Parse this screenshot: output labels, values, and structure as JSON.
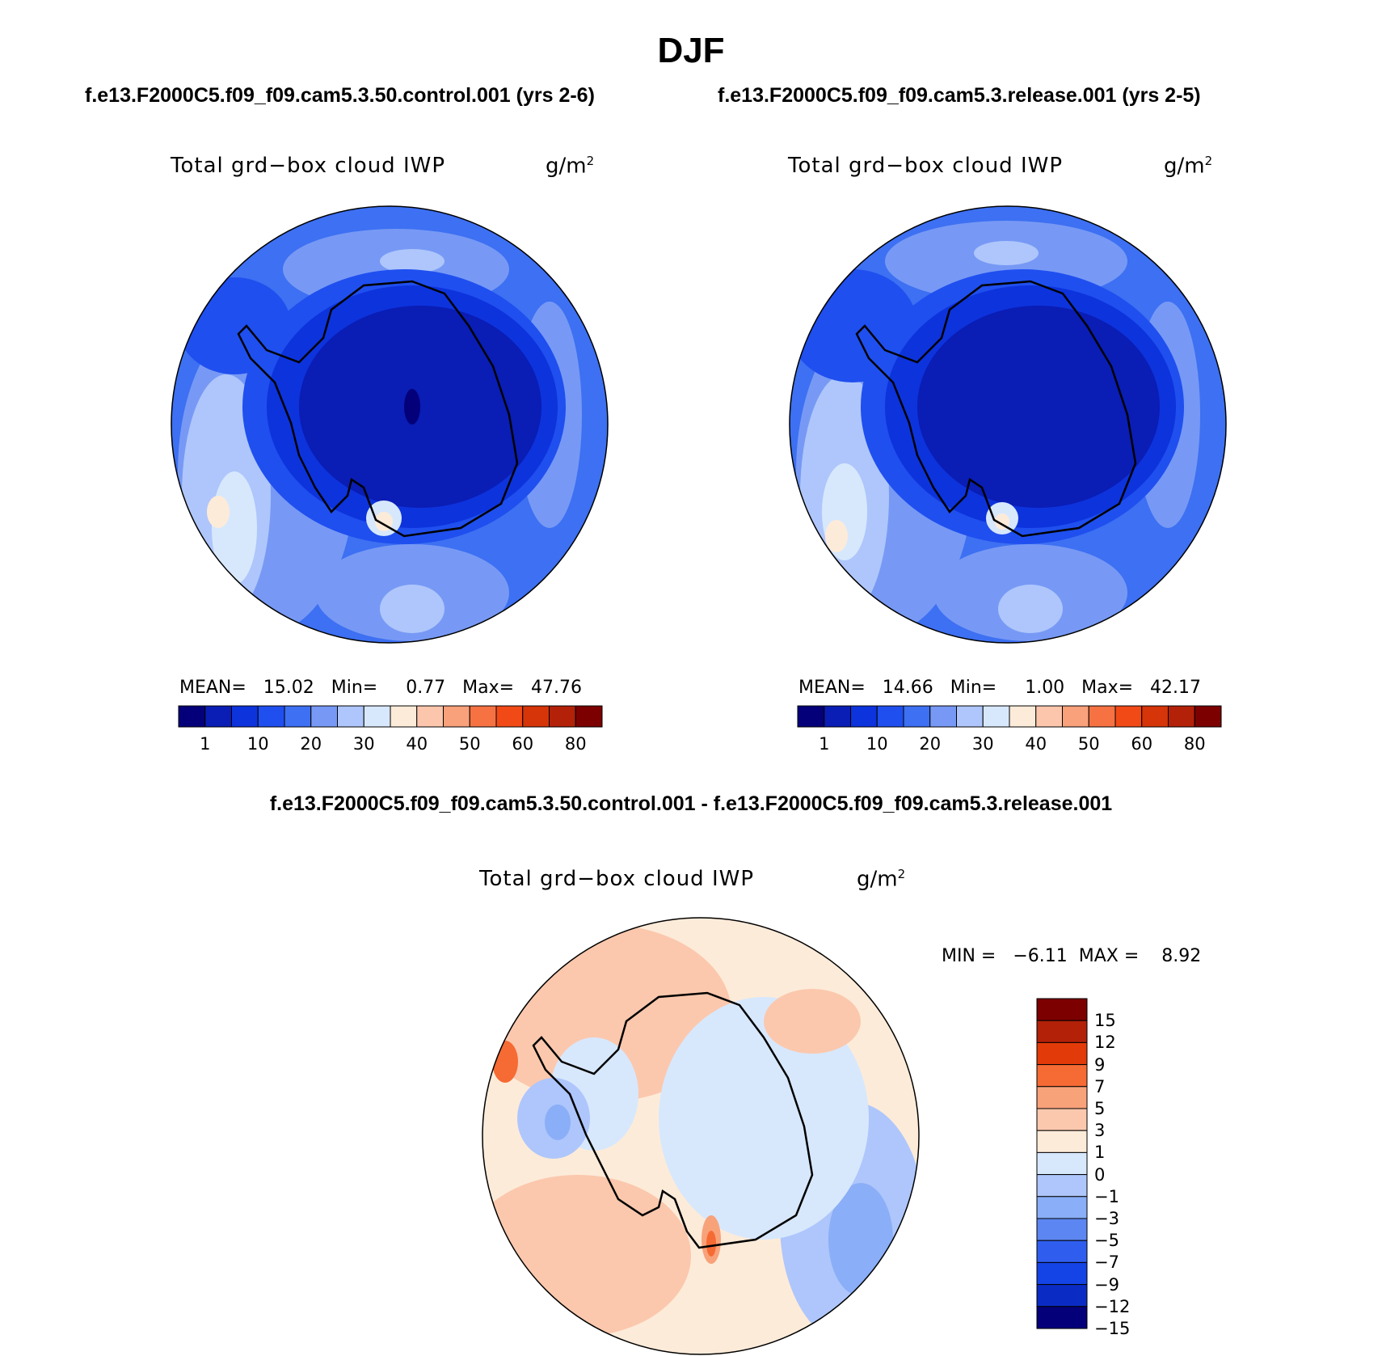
{
  "header": {
    "season": "DJF",
    "case_left": "f.e13.F2000C5.f09_f09.cam5.3.50.control.001 (yrs 2-6)",
    "case_right": "f.e13.F2000C5.f09_f09.cam5.3.release.001 (yrs 2-5)",
    "diff_title": "f.e13.F2000C5.f09_f09.cam5.3.50.control.001 - f.e13.F2000C5.f09_f09.cam5.3.release.001"
  },
  "panels": [
    {
      "variable": "Total grd−box cloud IWP",
      "unit": "g/m",
      "unit_exp": "2",
      "stats": "MEAN=   15.02   Min=     0.77   Max=   47.76"
    },
    {
      "variable": "Total grd−box cloud IWP",
      "unit": "g/m",
      "unit_exp": "2",
      "stats": "MEAN=   14.66   Min=     1.00   Max=   42.17"
    },
    {
      "variable": "Total grd−box cloud IWP",
      "unit": "g/m",
      "unit_exp": "2",
      "stats": "MIN =   −6.11  MAX =    8.92"
    }
  ],
  "colorbar_abs": {
    "colors": [
      "#04007a",
      "#0a1db4",
      "#0d33dd",
      "#1f4fef",
      "#3d70f2",
      "#7799f5",
      "#aec6fb",
      "#d7e8fd",
      "#fdebd9",
      "#fcc6ad",
      "#f9a17b",
      "#f67242",
      "#f24a17",
      "#d53508",
      "#b22108",
      "#7d0000"
    ],
    "labels": [
      "1",
      "10",
      "20",
      "30",
      "40",
      "50",
      "60",
      "80"
    ]
  },
  "colorbar_diff": {
    "colors": [
      "#7d0000",
      "#b22108",
      "#e23a08",
      "#f66a34",
      "#f8a27a",
      "#fbc8ad",
      "#fdebd9",
      "#d7e8fd",
      "#aec6fb",
      "#8aaef7",
      "#5c86f2",
      "#2f5eef",
      "#1443e6",
      "#0a2cc4",
      "#04007a"
    ],
    "labels": [
      "15",
      "12",
      "9",
      "7",
      "5",
      "3",
      "1",
      "0",
      "−1",
      "−3",
      "−5",
      "−7",
      "−9",
      "−12",
      "−15"
    ]
  }
}
